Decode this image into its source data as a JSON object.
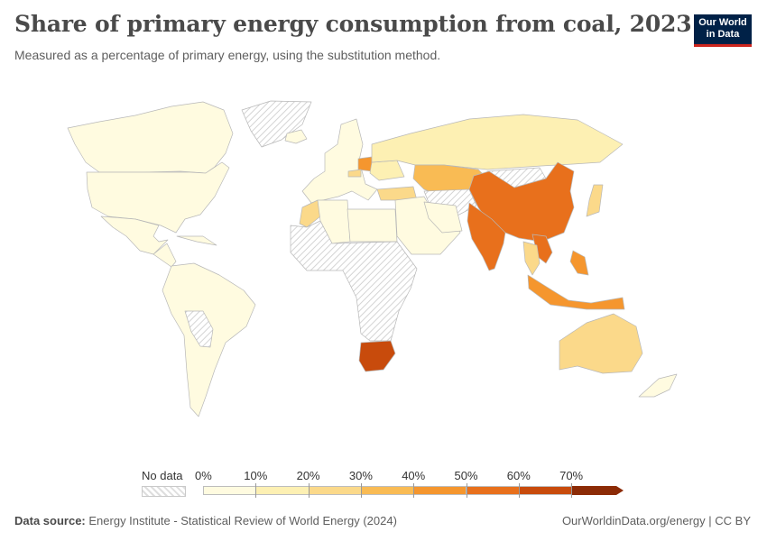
{
  "header": {
    "title": "Share of primary energy consumption from coal, 2023",
    "subtitle": "Measured as a percentage of primary energy, using the substitution method.",
    "logo_line1": "Our World",
    "logo_line2": "in Data"
  },
  "legend": {
    "no_data_label": "No data",
    "bins": [
      "0%",
      "10%",
      "20%",
      "30%",
      "40%",
      "50%",
      "60%",
      "70%"
    ],
    "colors": [
      "#fffbe0",
      "#fdf0b3",
      "#fbd98a",
      "#f9bb54",
      "#f5962e",
      "#e8701c",
      "#c84b0c",
      "#8c2b06"
    ],
    "no_data_color": "#e8e8e8"
  },
  "footer": {
    "source_label": "Data source:",
    "source_text": "Energy Institute - Statistical Review of World Energy (2024)",
    "right_text": "OurWorldinData.org/energy | CC BY"
  },
  "map_regions": [
    {
      "name": "Canada",
      "bin": 0
    },
    {
      "name": "United States",
      "bin": 0
    },
    {
      "name": "Mexico",
      "bin": 0
    },
    {
      "name": "Greenland",
      "bin": "nodata"
    },
    {
      "name": "Central America & Caribbean",
      "bin": 0
    },
    {
      "name": "South America",
      "bin": 0
    },
    {
      "name": "Bolivia & Paraguay",
      "bin": "nodata"
    },
    {
      "name": "Iceland",
      "bin": 0
    },
    {
      "name": "Western Europe",
      "bin": 0
    },
    {
      "name": "Poland",
      "bin": 4
    },
    {
      "name": "Czechia",
      "bin": 2
    },
    {
      "name": "Ukraine",
      "bin": 1
    },
    {
      "name": "Turkey",
      "bin": 2
    },
    {
      "name": "Morocco",
      "bin": 2
    },
    {
      "name": "Algeria",
      "bin": 0
    },
    {
      "name": "Egypt & Libya",
      "bin": 0
    },
    {
      "name": "Sub-Saharan Africa",
      "bin": "nodata"
    },
    {
      "name": "South Africa",
      "bin": 6
    },
    {
      "name": "Russia",
      "bin": 1
    },
    {
      "name": "Kazakhstan",
      "bin": 3
    },
    {
      "name": "Central Asia",
      "bin": "nodata"
    },
    {
      "name": "Middle East",
      "bin": 0
    },
    {
      "name": "Iran",
      "bin": 0
    },
    {
      "name": "Mongolia",
      "bin": "nodata"
    },
    {
      "name": "China",
      "bin": 5
    },
    {
      "name": "India",
      "bin": 5
    },
    {
      "name": "Vietnam",
      "bin": 5
    },
    {
      "name": "Thailand",
      "bin": 2
    },
    {
      "name": "Philippines",
      "bin": 4
    },
    {
      "name": "Indonesia",
      "bin": 4
    },
    {
      "name": "Japan",
      "bin": 2
    },
    {
      "name": "Australia",
      "bin": 2
    },
    {
      "name": "New Zealand",
      "bin": 0
    }
  ]
}
